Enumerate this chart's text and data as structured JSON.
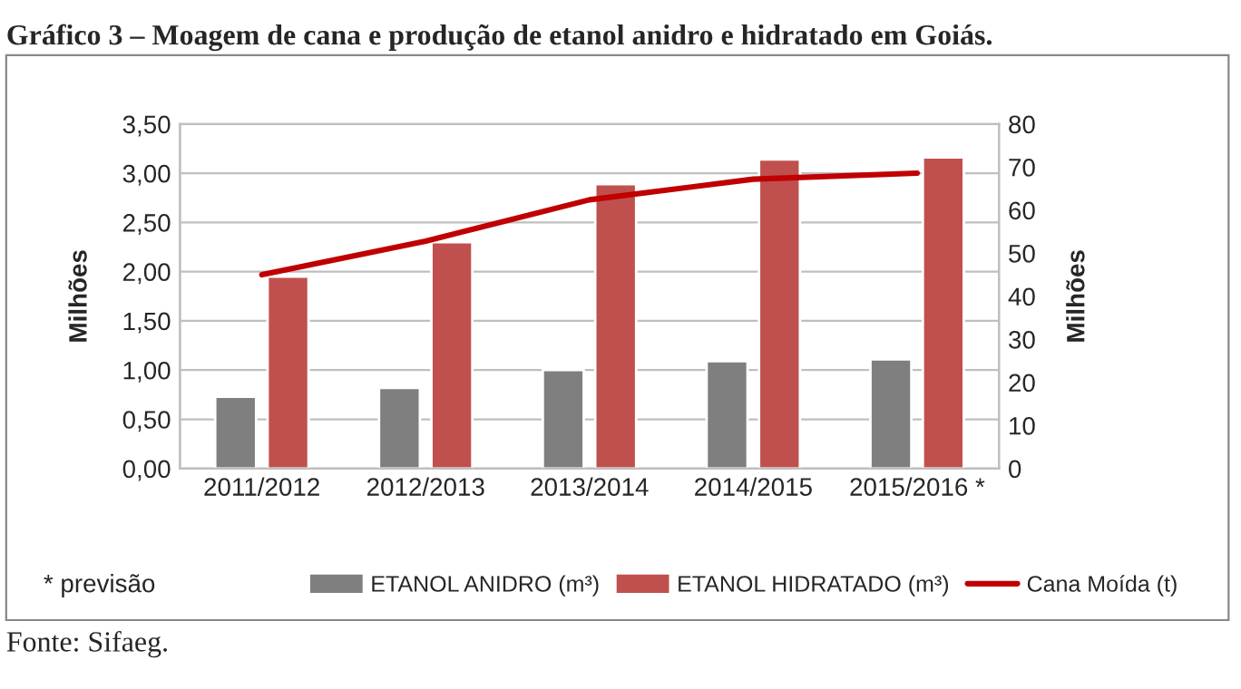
{
  "chart_data": {
    "type": "bar",
    "title": "Gráfico 3 – Moagem de cana e produção de etanol anidro e hidratado em Goiás.",
    "ylabel": "Milhões",
    "y2label": "Milhões",
    "categories": [
      "2011/2012",
      "2012/2013",
      "2013/2014",
      "2014/2015",
      "2015/2016 *"
    ],
    "series": [
      {
        "name": "ETANOL ANIDRO (m³)",
        "color": "#7f7f7f",
        "values": [
          0.73,
          0.82,
          1.0,
          1.09,
          1.11
        ]
      },
      {
        "name": "ETANOL HIDRATADO (m³)",
        "color": "#c0504d",
        "values": [
          1.95,
          2.3,
          2.89,
          3.14,
          3.16
        ]
      },
      {
        "name": "Cana Moída (t)",
        "color": "#c00000",
        "type": "line",
        "axis": "y2",
        "values": [
          45,
          52.8,
          62.4,
          67.2,
          68.6
        ]
      }
    ],
    "ylim": [
      0,
      3.5
    ],
    "yticks": [
      {
        "value": 0,
        "label": "0,00"
      },
      {
        "value": 0.5,
        "label": "0,50"
      },
      {
        "value": 1,
        "label": "1,00"
      },
      {
        "value": 1.5,
        "label": "1,50"
      },
      {
        "value": 2,
        "label": "2,00"
      },
      {
        "value": 2.5,
        "label": "2,50"
      },
      {
        "value": 3,
        "label": "3,00"
      },
      {
        "value": 3.5,
        "label": "3,50"
      }
    ],
    "y2lim": [
      0,
      80
    ],
    "y2ticks": [
      0,
      10,
      20,
      30,
      40,
      50,
      60,
      70,
      80
    ],
    "grid": "y",
    "legend": "bottom",
    "marker": "none",
    "line_style": "solid",
    "annotations": [
      "* previsão",
      "Fonte: Sifaeg."
    ]
  }
}
